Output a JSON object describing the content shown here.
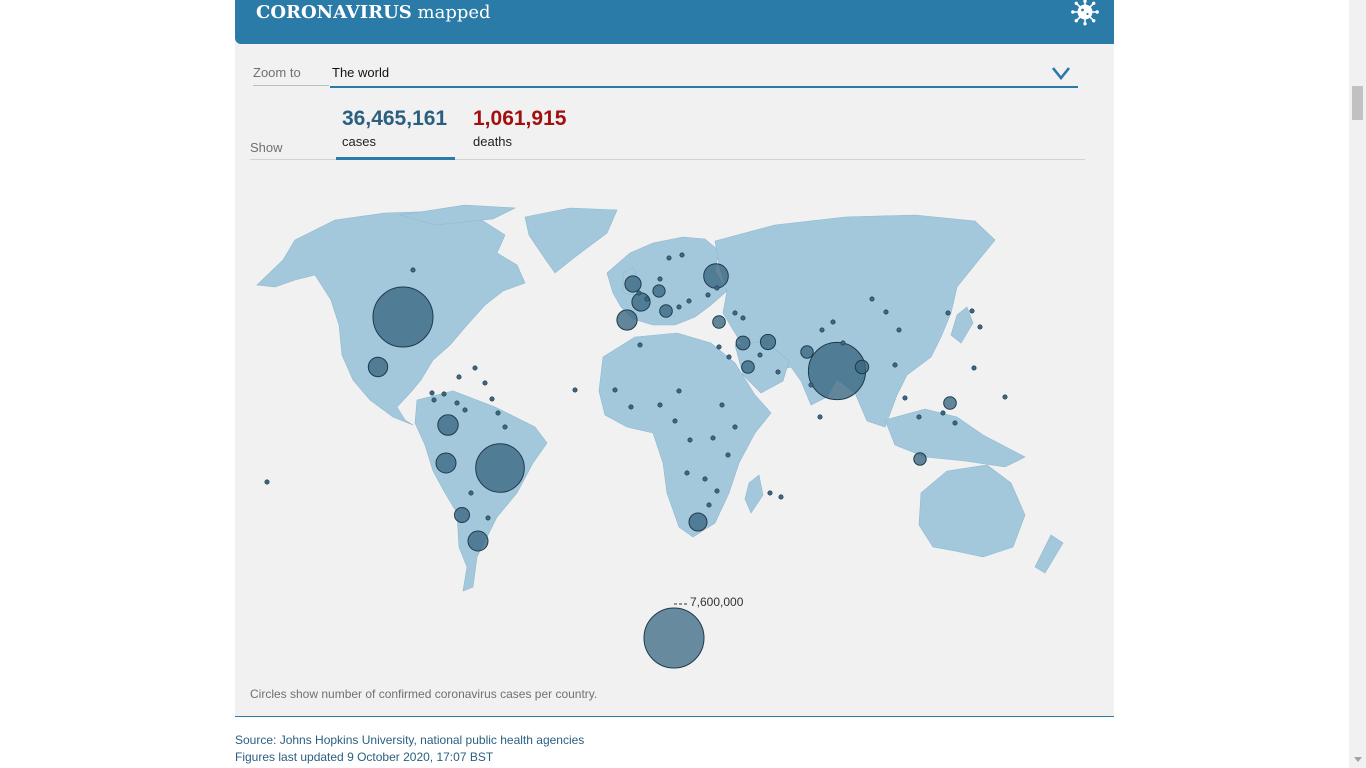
{
  "header": {
    "title_strong": "CORONAVIRUS",
    "title_light": " mapped",
    "icon": "coronavirus-icon"
  },
  "zoom": {
    "label": "Zoom to",
    "value": "The world",
    "icon": "chevron-down-icon"
  },
  "show": {
    "label": "Show",
    "tabs": [
      {
        "value": "36,465,161",
        "label": "cases",
        "selected": true
      },
      {
        "value": "1,061,915",
        "label": "deaths",
        "selected": false
      }
    ]
  },
  "legend": {
    "value": 7600000,
    "label": "7,600,000"
  },
  "note": "Circles show number of confirmed coronavirus cases per country.",
  "source": {
    "line1": "Source: Johns Hopkins University, national public health agencies",
    "line2": "Figures last updated 9 October 2020, 17:07 BST"
  },
  "colors": {
    "header": "#2a7ba8",
    "land": "#a3c8dc",
    "bubble": "#3a6781",
    "deaths": "#a10f0f",
    "panel": "#f1f1f1"
  },
  "map_data": {
    "metric": "confirmed cases",
    "countries": [
      {
        "name": "United States",
        "cases": 7600000
      },
      {
        "name": "India",
        "cases": 6900000
      },
      {
        "name": "Brazil",
        "cases": 5000000
      },
      {
        "name": "Russia",
        "cases": 1270000
      },
      {
        "name": "Colombia",
        "cases": 880000
      },
      {
        "name": "Argentina",
        "cases": 840000
      },
      {
        "name": "Spain",
        "cases": 860000
      },
      {
        "name": "Peru",
        "cases": 840000
      },
      {
        "name": "Mexico",
        "cases": 800000
      },
      {
        "name": "France",
        "cases": 700000
      },
      {
        "name": "South Africa",
        "cases": 690000
      },
      {
        "name": "United Kingdom",
        "cases": 560000
      },
      {
        "name": "Iran",
        "cases": 490000
      },
      {
        "name": "Chile",
        "cases": 480000
      },
      {
        "name": "Iraq",
        "cases": 400000
      },
      {
        "name": "Bangladesh",
        "cases": 375000
      },
      {
        "name": "Italy",
        "cases": 340000
      },
      {
        "name": "Saudi Arabia",
        "cases": 340000
      },
      {
        "name": "Philippines",
        "cases": 330000
      },
      {
        "name": "Turkey",
        "cases": 330000
      },
      {
        "name": "Pakistan",
        "cases": 320000
      },
      {
        "name": "Indonesia",
        "cases": 320000
      },
      {
        "name": "Germany",
        "cases": 310000
      }
    ]
  }
}
